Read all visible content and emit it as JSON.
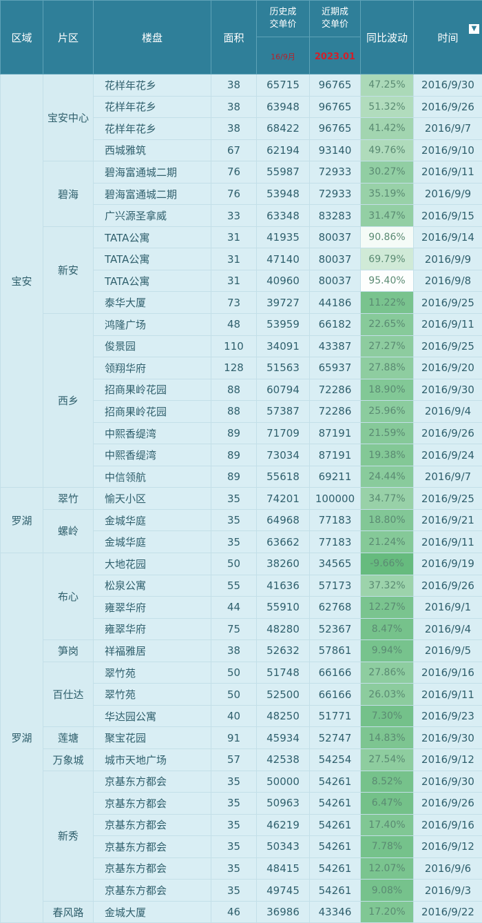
{
  "header": {
    "region": "区域",
    "district": "片区",
    "building": "楼盘",
    "area": "面积",
    "hist_price": "历史成交单价",
    "hist_sub": "16/9月",
    "recent_price": "近期成交单价",
    "recent_sub": "2023.01",
    "change": "同比波动",
    "time": "时间",
    "filter_icon": "filter-icon"
  },
  "colors": {
    "header": "#2f7f99",
    "low": "#66bb7e",
    "high": "#fdfefd"
  },
  "regions": [
    {
      "name": "宝安",
      "rows": 19
    },
    {
      "name": "罗湖",
      "rows": 3
    },
    {
      "name": "罗湖",
      "rows": 17
    }
  ],
  "districts": [
    {
      "name": "宝安中心",
      "rows": 4
    },
    {
      "name": "碧海",
      "rows": 3
    },
    {
      "name": "新安",
      "rows": 4
    },
    {
      "name": "西乡",
      "rows": 8
    },
    {
      "name": "翠竹",
      "rows": 1
    },
    {
      "name": "螺岭",
      "rows": 2
    },
    {
      "name": "布心",
      "rows": 4
    },
    {
      "name": "笋岗",
      "rows": 1
    },
    {
      "name": "百仕达",
      "rows": 3
    },
    {
      "name": "莲塘",
      "rows": 1
    },
    {
      "name": "万象城",
      "rows": 1
    },
    {
      "name": "新秀",
      "rows": 6
    },
    {
      "name": "春风路",
      "rows": 1
    }
  ],
  "rows": [
    [
      "花样年花乡",
      "38",
      "65715",
      "96765",
      "47.25%",
      "2016/9/30"
    ],
    [
      "花样年花乡",
      "38",
      "63948",
      "96765",
      "51.32%",
      "2016/9/26"
    ],
    [
      "花样年花乡",
      "38",
      "68422",
      "96765",
      "41.42%",
      "2016/9/7"
    ],
    [
      "西城雅筑",
      "67",
      "62194",
      "93140",
      "49.76%",
      "2016/9/10"
    ],
    [
      "碧海富通城二期",
      "76",
      "55987",
      "72933",
      "30.27%",
      "2016/9/11"
    ],
    [
      "碧海富通城二期",
      "76",
      "53948",
      "72933",
      "35.19%",
      "2016/9/9"
    ],
    [
      "广兴源圣拿威",
      "33",
      "63348",
      "83283",
      "31.47%",
      "2016/9/15"
    ],
    [
      "TATA公寓",
      "31",
      "41935",
      "80037",
      "90.86%",
      "2016/9/14"
    ],
    [
      "TATA公寓",
      "31",
      "47140",
      "80037",
      "69.79%",
      "2016/9/9"
    ],
    [
      "TATA公寓",
      "31",
      "40960",
      "80037",
      "95.40%",
      "2016/9/8"
    ],
    [
      "泰华大厦",
      "73",
      "39727",
      "44186",
      "11.22%",
      "2016/9/25"
    ],
    [
      "鸿隆广场",
      "48",
      "53959",
      "66182",
      "22.65%",
      "2016/9/11"
    ],
    [
      "俊景园",
      "110",
      "34091",
      "43387",
      "27.27%",
      "2016/9/25"
    ],
    [
      "领翔华府",
      "128",
      "51563",
      "65937",
      "27.88%",
      "2016/9/20"
    ],
    [
      "招商果岭花园",
      "88",
      "60794",
      "72286",
      "18.90%",
      "2016/9/30"
    ],
    [
      "招商果岭花园",
      "88",
      "57387",
      "72286",
      "25.96%",
      "2016/9/4"
    ],
    [
      "中熙香缇湾",
      "89",
      "71709",
      "87191",
      "21.59%",
      "2016/9/26"
    ],
    [
      "中熙香缇湾",
      "89",
      "73034",
      "87191",
      "19.38%",
      "2016/9/24"
    ],
    [
      "中信领航",
      "89",
      "55618",
      "69211",
      "24.44%",
      "2016/9/7"
    ],
    [
      "愉天小区",
      "35",
      "74201",
      "100000",
      "34.77%",
      "2016/9/25"
    ],
    [
      "金城华庭",
      "35",
      "64968",
      "77183",
      "18.80%",
      "2016/9/21"
    ],
    [
      "金城华庭",
      "35",
      "63662",
      "77183",
      "21.24%",
      "2016/9/11"
    ],
    [
      "大地花园",
      "50",
      "38260",
      "34565",
      "-9.66%",
      "2016/9/19"
    ],
    [
      "松泉公寓",
      "55",
      "41636",
      "57173",
      "37.32%",
      "2016/9/26"
    ],
    [
      "雍翠华府",
      "44",
      "55910",
      "62768",
      "12.27%",
      "2016/9/1"
    ],
    [
      "雍翠华府",
      "75",
      "48280",
      "52367",
      "8.47%",
      "2016/9/4"
    ],
    [
      "祥福雅居",
      "38",
      "52632",
      "57861",
      "9.94%",
      "2016/9/5"
    ],
    [
      "翠竹苑",
      "50",
      "51748",
      "66166",
      "27.86%",
      "2016/9/16"
    ],
    [
      "翠竹苑",
      "50",
      "52500",
      "66166",
      "26.03%",
      "2016/9/11"
    ],
    [
      "华达园公寓",
      "40",
      "48250",
      "51771",
      "7.30%",
      "2016/9/23"
    ],
    [
      "聚宝花园",
      "91",
      "45934",
      "52747",
      "14.83%",
      "2016/9/30"
    ],
    [
      "城市天地广场",
      "57",
      "42538",
      "54254",
      "27.54%",
      "2016/9/12"
    ],
    [
      "京基东方都会",
      "35",
      "50000",
      "54261",
      "8.52%",
      "2016/9/30"
    ],
    [
      "京基东方都会",
      "35",
      "50963",
      "54261",
      "6.47%",
      "2016/9/26"
    ],
    [
      "京基东方都会",
      "35",
      "46219",
      "54261",
      "17.40%",
      "2016/9/16"
    ],
    [
      "京基东方都会",
      "35",
      "50343",
      "54261",
      "7.78%",
      "2016/9/12"
    ],
    [
      "京基东方都会",
      "35",
      "48415",
      "54261",
      "12.07%",
      "2016/9/6"
    ],
    [
      "京基东方都会",
      "35",
      "49745",
      "54261",
      "9.08%",
      "2016/9/3"
    ],
    [
      "金城大厦",
      "46",
      "36986",
      "43346",
      "17.20%",
      "2016/9/22"
    ]
  ]
}
